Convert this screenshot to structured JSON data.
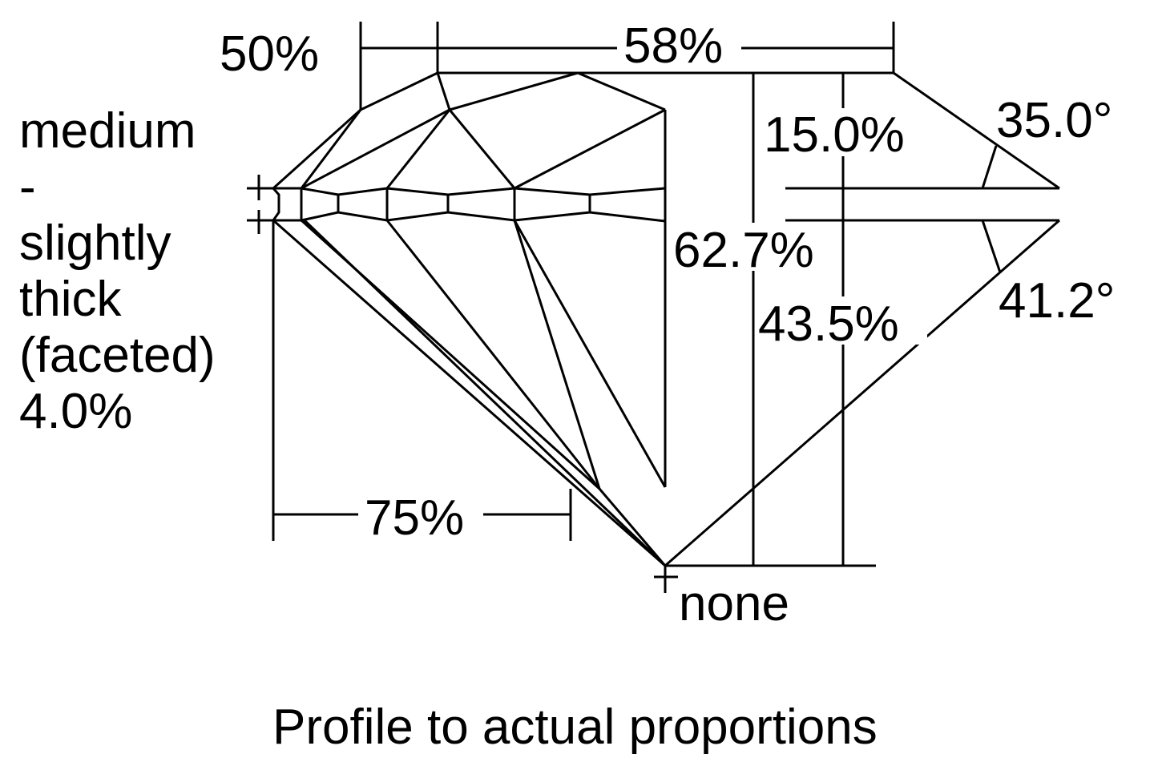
{
  "labels": {
    "table_pct": "58%",
    "star_pct": "50%",
    "crown_height_pct": "15.0%",
    "crown_angle": "35.0°",
    "total_depth_pct": "62.7%",
    "pavilion_depth_pct": "43.5%",
    "pavilion_angle": "41.2°",
    "lower_half_pct": "75%",
    "culet": "none",
    "girdle_lines": [
      "medium",
      "-",
      "slightly",
      "thick",
      "(faceted)",
      "4.0%"
    ],
    "caption": "Profile to actual proportions"
  },
  "colors": {
    "line": "#000000",
    "background": "#ffffff"
  }
}
